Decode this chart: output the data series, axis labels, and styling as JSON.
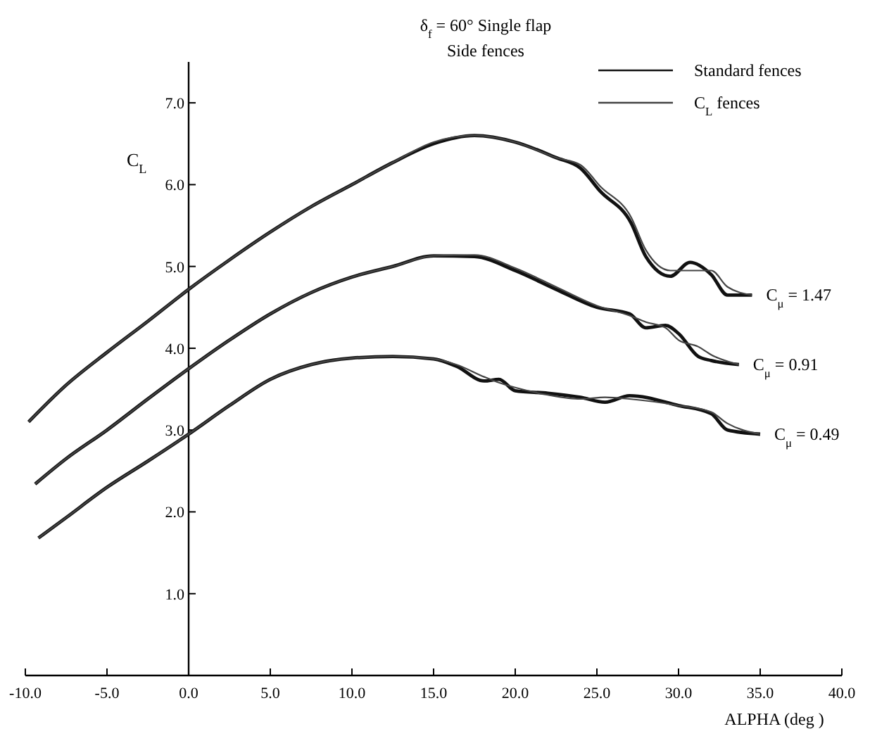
{
  "chart_data": {
    "type": "line",
    "title": "δ$_{f}$ = 60°  Single flap",
    "subtitle": "Side fences",
    "xlabel": "ALPHA (deg )",
    "ylabel": "C$_{L}$",
    "xlim": [
      -10,
      40
    ],
    "ylim": [
      0,
      7.5
    ],
    "xticks": [
      {
        "value": -10,
        "label": "-10.0"
      },
      {
        "value": -5,
        "label": "-5.0"
      },
      {
        "value": 0,
        "label": "0.0"
      },
      {
        "value": 5,
        "label": "5.0"
      },
      {
        "value": 10,
        "label": "10.0"
      },
      {
        "value": 15,
        "label": "15.0"
      },
      {
        "value": 20,
        "label": "20.0"
      },
      {
        "value": 25,
        "label": "25.0"
      },
      {
        "value": 30,
        "label": "30.0"
      },
      {
        "value": 35,
        "label": "35.0"
      },
      {
        "value": 40,
        "label": "40.0"
      }
    ],
    "yticks": [
      {
        "value": 1,
        "label": "1.0"
      },
      {
        "value": 2,
        "label": "2.0"
      },
      {
        "value": 3,
        "label": "3.0"
      },
      {
        "value": 4,
        "label": "4.0"
      },
      {
        "value": 5,
        "label": "5.0"
      },
      {
        "value": 6,
        "label": "6.0"
      },
      {
        "value": 7,
        "label": "7.0"
      }
    ],
    "grid": false,
    "legend": "top right",
    "marker": "none",
    "line_style": "solid",
    "series": [
      {
        "name": "Standard fences",
        "color": "#111111",
        "x": [
          -9.8,
          -7.5,
          -5,
          -2.5,
          0,
          2.5,
          5,
          7.5,
          10,
          12.5,
          15,
          17.5,
          20,
          22.5,
          24,
          25.2,
          27.1,
          28,
          29.5,
          30.7,
          32,
          33,
          34.5
        ],
        "values": [
          3.1,
          3.55,
          3.95,
          4.33,
          4.72,
          5.08,
          5.42,
          5.73,
          6.0,
          6.27,
          6.5,
          6.6,
          6.52,
          6.33,
          6.2,
          5.92,
          5.53,
          5.12,
          4.88,
          5.05,
          4.9,
          4.65,
          4.65
        ]
      },
      {
        "name": "C$_{L}$ fences",
        "color": "#444444",
        "x": [
          -9.8,
          -7.5,
          -5,
          -2.5,
          0,
          2.5,
          5,
          7.5,
          10,
          12.5,
          15,
          17.5,
          20,
          22.5,
          24,
          25.2,
          27.1,
          28,
          29.5,
          30.7,
          32,
          33,
          34.5
        ],
        "values": [
          3.1,
          3.55,
          3.95,
          4.33,
          4.72,
          5.08,
          5.42,
          5.73,
          6.0,
          6.27,
          6.52,
          6.6,
          6.52,
          6.33,
          6.24,
          5.98,
          5.6,
          5.2,
          4.95,
          4.95,
          4.95,
          4.75,
          4.65
        ]
      },
      {
        "color": "#111111",
        "x": [
          -9.4,
          -7.5,
          -5,
          -2.5,
          0,
          2.5,
          5,
          7.5,
          10,
          12.5,
          15,
          17.5,
          20,
          22.5,
          25,
          27,
          28,
          29.2,
          30,
          31.2,
          32,
          33.7
        ],
        "values": [
          2.34,
          2.65,
          3.0,
          3.38,
          3.75,
          4.1,
          4.42,
          4.68,
          4.87,
          5.0,
          5.13,
          5.12,
          4.95,
          4.72,
          4.5,
          4.42,
          4.25,
          4.28,
          4.18,
          3.9,
          3.85,
          3.8
        ]
      },
      {
        "color": "#444444",
        "x": [
          -9.4,
          -7.5,
          -5,
          -2.5,
          0,
          2.5,
          5,
          7.5,
          10,
          12.5,
          15,
          17.5,
          20,
          22.5,
          25,
          27,
          28,
          29.2,
          30,
          31.2,
          32,
          33.7
        ],
        "values": [
          2.34,
          2.65,
          3.0,
          3.38,
          3.75,
          4.1,
          4.42,
          4.68,
          4.87,
          5.0,
          5.13,
          5.14,
          4.98,
          4.75,
          4.52,
          4.4,
          4.32,
          4.25,
          4.1,
          4.02,
          3.92,
          3.8
        ]
      },
      {
        "color": "#111111",
        "x": [
          -9.2,
          -7.5,
          -5,
          -2.5,
          0,
          2.5,
          5,
          7.5,
          10,
          12.5,
          15,
          16.4,
          18.1,
          19,
          20,
          22,
          24,
          25.5,
          27,
          30,
          32,
          33,
          35
        ],
        "values": [
          1.68,
          1.93,
          2.3,
          2.62,
          2.95,
          3.3,
          3.62,
          3.8,
          3.88,
          3.9,
          3.87,
          3.78,
          3.6,
          3.62,
          3.48,
          3.45,
          3.4,
          3.34,
          3.42,
          3.3,
          3.2,
          3.0,
          2.95
        ]
      },
      {
        "color": "#444444",
        "x": [
          -9.2,
          -7.5,
          -5,
          -2.5,
          0,
          2.5,
          5,
          7.5,
          10,
          12.5,
          15,
          16.4,
          18.1,
          19,
          20,
          22,
          24,
          25.5,
          27,
          30,
          32,
          33,
          35
        ],
        "values": [
          1.68,
          1.93,
          2.3,
          2.62,
          2.95,
          3.3,
          3.62,
          3.8,
          3.88,
          3.9,
          3.87,
          3.8,
          3.65,
          3.58,
          3.52,
          3.43,
          3.38,
          3.4,
          3.38,
          3.3,
          3.22,
          3.08,
          2.95
        ]
      }
    ],
    "annotations": [
      {
        "text": "C$_{μ}$ = 1.47",
        "x": 34.5,
        "y": 4.65
      },
      {
        "text": "C$_{μ}$ = 0.91",
        "x": 33.7,
        "y": 3.8
      },
      {
        "text": "C$_{μ}$ = 0.49",
        "x": 35,
        "y": 2.95
      }
    ]
  }
}
